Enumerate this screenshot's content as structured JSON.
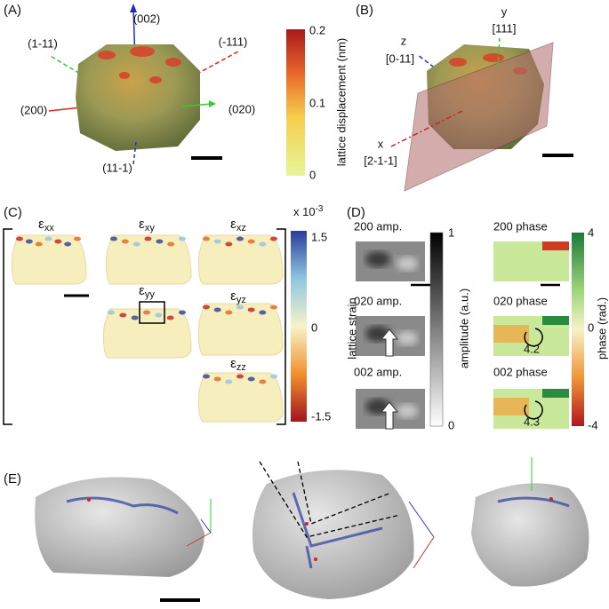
{
  "panels": {
    "a": {
      "label": "(A)",
      "axes": [
        "(002)",
        "(1-11)",
        "(-111)",
        "(200)",
        "(020)",
        "(11-1)"
      ],
      "colorbar": {
        "ticks": [
          "0.2",
          "0.1",
          "0"
        ],
        "title": "lattice displacement (nm)"
      }
    },
    "b": {
      "label": "(B)",
      "axes": [
        {
          "name": "y",
          "direction": "[111]"
        },
        {
          "name": "z",
          "direction": "[0-11]"
        },
        {
          "name": "x",
          "direction": "[2-1-1]"
        }
      ]
    },
    "c": {
      "label": "(C)",
      "components": [
        {
          "symbol": "ε",
          "sub": "xx"
        },
        {
          "symbol": "ε",
          "sub": "xy"
        },
        {
          "symbol": "ε",
          "sub": "xz"
        },
        {
          "symbol": "ε",
          "sub": "yy"
        },
        {
          "symbol": "ε",
          "sub": "yz"
        },
        {
          "symbol": "ε",
          "sub": "zz"
        }
      ],
      "colorbar": {
        "scale": {
          "base": "x 10",
          "exp": "-3"
        },
        "ticks": [
          "1.5",
          "0",
          "-1.5"
        ],
        "title": "lattice strain"
      }
    },
    "d": {
      "label": "(D)",
      "amplitude": [
        "200 amp.",
        "020 amp.",
        "002 amp."
      ],
      "phase": [
        "200 phase",
        "020 phase",
        "002 phase"
      ],
      "phase_values": [
        "4.2",
        "4.3"
      ],
      "amplitude_colorbar": {
        "ticks": [
          "1",
          "0"
        ],
        "title": "amplitude (a.u.)"
      },
      "phase_colorbar": {
        "ticks": [
          "4",
          "0",
          "-4"
        ],
        "title": "phase (rad.)"
      }
    },
    "e": {
      "label": "(E)"
    }
  }
}
